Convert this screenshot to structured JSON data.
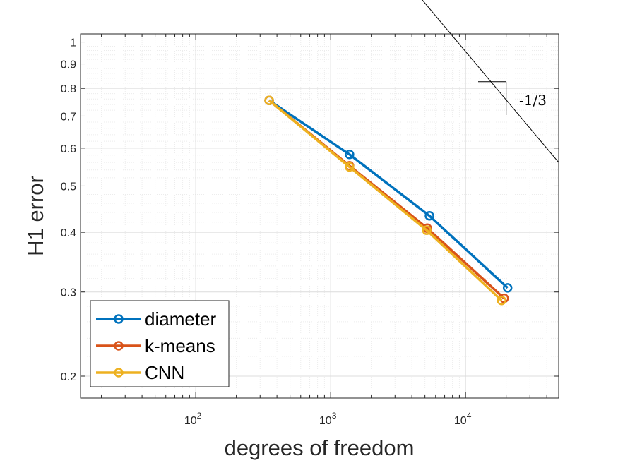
{
  "chart_data": {
    "type": "line",
    "xscale": "log",
    "yscale": "log",
    "xlabel": "degrees of freedom",
    "ylabel": "H1 error",
    "xlim": [
      14,
      49000
    ],
    "ylim": [
      0.18,
      1.04
    ],
    "grid": true,
    "minor_grid": true,
    "x_ticks": [
      {
        "value": 100,
        "base": "10",
        "exp": "2"
      },
      {
        "value": 1000,
        "base": "10",
        "exp": "3"
      },
      {
        "value": 10000,
        "base": "10",
        "exp": "4"
      }
    ],
    "y_ticks": [
      {
        "value": 0.2,
        "label": "0.2"
      },
      {
        "value": 0.3,
        "label": "0.3"
      },
      {
        "value": 0.4,
        "label": "0.4"
      },
      {
        "value": 0.5,
        "label": "0.5"
      },
      {
        "value": 0.6,
        "label": "0.6"
      },
      {
        "value": 0.7,
        "label": "0.7"
      },
      {
        "value": 0.8,
        "label": "0.8"
      },
      {
        "value": 0.9,
        "label": "0.9"
      },
      {
        "value": 1,
        "label": "1"
      }
    ],
    "series": [
      {
        "name": "diameter",
        "color": "#0072BD",
        "x": [
          350,
          1380,
          5400,
          20500
        ],
        "y": [
          0.755,
          0.582,
          0.433,
          0.306
        ]
      },
      {
        "name": "k-means",
        "color": "#D95319",
        "x": [
          350,
          1380,
          5200,
          19300
        ],
        "y": [
          0.755,
          0.551,
          0.408,
          0.291
        ]
      },
      {
        "name": "CNN",
        "color": "#EDB120",
        "x": [
          350,
          1380,
          5150,
          18500
        ],
        "y": [
          0.755,
          0.548,
          0.404,
          0.288
        ]
      }
    ],
    "legend_position": "bottom-left",
    "reference_line": {
      "x": [
        4000,
        49000
      ],
      "y": [
        1.3,
        0.56
      ],
      "color": "#000000"
    },
    "slope_triangle": {
      "x1": 12400,
      "x2": 20000,
      "y_top": 0.826,
      "label": "-1/3"
    }
  }
}
